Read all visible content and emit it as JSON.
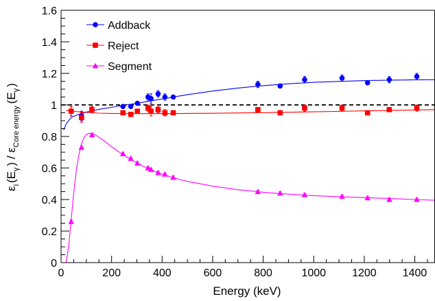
{
  "chart_data": {
    "type": "scatter",
    "xlabel": "Energy (keV)",
    "ylabel": {
      "prefix": "ε",
      "sub_i": "i",
      "mid": "(E",
      "sub_gamma": "γ",
      "mid2": ") / ε",
      "sub_core": "Core energy",
      "end": "(E",
      "sub_gamma2": "γ",
      "close": ")"
    },
    "xlim": [
      0,
      1480
    ],
    "ylim": [
      0,
      1.6
    ],
    "x_ticks": [
      0,
      200,
      400,
      600,
      800,
      1000,
      1200,
      1400
    ],
    "x_tick_labels": [
      "0",
      "200",
      "400",
      "600",
      "800",
      "1000",
      "1200",
      "1400"
    ],
    "y_ticks": [
      0,
      0.2,
      0.4,
      0.6,
      0.8,
      1,
      1.2,
      1.4,
      1.6
    ],
    "y_tick_labels": [
      "0",
      "0.2",
      "0.4",
      "0.6",
      "0.8",
      "1",
      "1.2",
      "1.4",
      "1.6"
    ],
    "reference_line": {
      "y": 1.0,
      "style": "dashed",
      "color": "#000000"
    },
    "legend_position": "top-left",
    "series": [
      {
        "name": "Addback",
        "color": "#0000ff",
        "marker": "circle",
        "x": [
          40,
          81,
          122,
          245,
          276,
          302,
          344,
          356,
          384,
          411,
          444,
          779,
          867,
          964,
          1112,
          1213,
          1299,
          1408
        ],
        "y": [
          0.96,
          0.93,
          0.97,
          0.99,
          0.99,
          1.01,
          1.05,
          1.04,
          1.07,
          1.05,
          1.05,
          1.13,
          1.12,
          1.16,
          1.17,
          1.14,
          1.16,
          1.18
        ],
        "err": [
          0.03,
          0.03,
          0.02,
          0.01,
          0.01,
          0.01,
          0.02,
          0.03,
          0.02,
          0.02,
          0.01,
          0.02,
          0.01,
          0.02,
          0.02,
          0.01,
          0.02,
          0.02
        ],
        "fit": {
          "x": [
            10,
            20,
            40,
            60,
            80,
            100,
            130,
            160,
            200,
            250,
            300,
            400,
            500,
            600,
            700,
            800,
            900,
            1000,
            1100,
            1200,
            1300,
            1400,
            1480
          ],
          "y": [
            0.84,
            0.88,
            0.92,
            0.935,
            0.945,
            0.955,
            0.965,
            0.975,
            0.985,
            0.998,
            1.01,
            1.038,
            1.065,
            1.088,
            1.107,
            1.122,
            1.134,
            1.143,
            1.149,
            1.154,
            1.157,
            1.159,
            1.16
          ]
        }
      },
      {
        "name": "Reject",
        "color": "#ff0000",
        "marker": "square",
        "x": [
          40,
          81,
          122,
          245,
          276,
          302,
          344,
          356,
          384,
          411,
          444,
          779,
          867,
          964,
          1112,
          1213,
          1299,
          1408
        ],
        "y": [
          0.96,
          0.92,
          0.97,
          0.95,
          0.94,
          0.96,
          0.98,
          0.96,
          0.97,
          0.95,
          0.95,
          0.97,
          0.95,
          0.98,
          0.98,
          0.95,
          0.97,
          0.98
        ],
        "err": [
          0.03,
          0.03,
          0.02,
          0.01,
          0.01,
          0.01,
          0.02,
          0.03,
          0.02,
          0.02,
          0.01,
          0.01,
          0.01,
          0.02,
          0.02,
          0.01,
          0.01,
          0.02
        ],
        "fit": {
          "x": [
            20,
            60,
            100,
            150,
            200,
            300,
            400,
            500,
            600,
            800,
            1000,
            1200,
            1400,
            1480
          ],
          "y": [
            0.965,
            0.958,
            0.952,
            0.948,
            0.946,
            0.945,
            0.945,
            0.946,
            0.947,
            0.951,
            0.956,
            0.962,
            0.968,
            0.97
          ]
        }
      },
      {
        "name": "Segment",
        "color": "#ff00ff",
        "marker": "triangle",
        "x": [
          40,
          81,
          122,
          245,
          276,
          302,
          344,
          356,
          384,
          411,
          444,
          779,
          867,
          964,
          1112,
          1213,
          1299,
          1408
        ],
        "y": [
          0.26,
          0.73,
          0.81,
          0.69,
          0.66,
          0.63,
          0.6,
          0.59,
          0.57,
          0.56,
          0.54,
          0.45,
          0.44,
          0.43,
          0.42,
          0.41,
          0.4,
          0.4
        ],
        "err": [
          0.01,
          0.01,
          0.01,
          0.01,
          0.01,
          0.01,
          0.01,
          0.01,
          0.01,
          0.01,
          0.01,
          0.01,
          0.01,
          0.01,
          0.01,
          0.01,
          0.01,
          0.01
        ],
        "fit": {
          "x": [
            20,
            30,
            40,
            50,
            60,
            70,
            80,
            90,
            100,
            110,
            120,
            130,
            140,
            160,
            180,
            200,
            240,
            280,
            320,
            360,
            400,
            450,
            500,
            600,
            700,
            800,
            900,
            1000,
            1100,
            1200,
            1300,
            1400,
            1480
          ],
          "y": [
            0.0,
            0.1,
            0.27,
            0.44,
            0.58,
            0.68,
            0.75,
            0.79,
            0.81,
            0.82,
            0.82,
            0.815,
            0.805,
            0.785,
            0.76,
            0.735,
            0.69,
            0.65,
            0.615,
            0.585,
            0.56,
            0.535,
            0.515,
            0.485,
            0.462,
            0.446,
            0.434,
            0.425,
            0.418,
            0.412,
            0.406,
            0.4,
            0.395
          ]
        }
      }
    ]
  }
}
